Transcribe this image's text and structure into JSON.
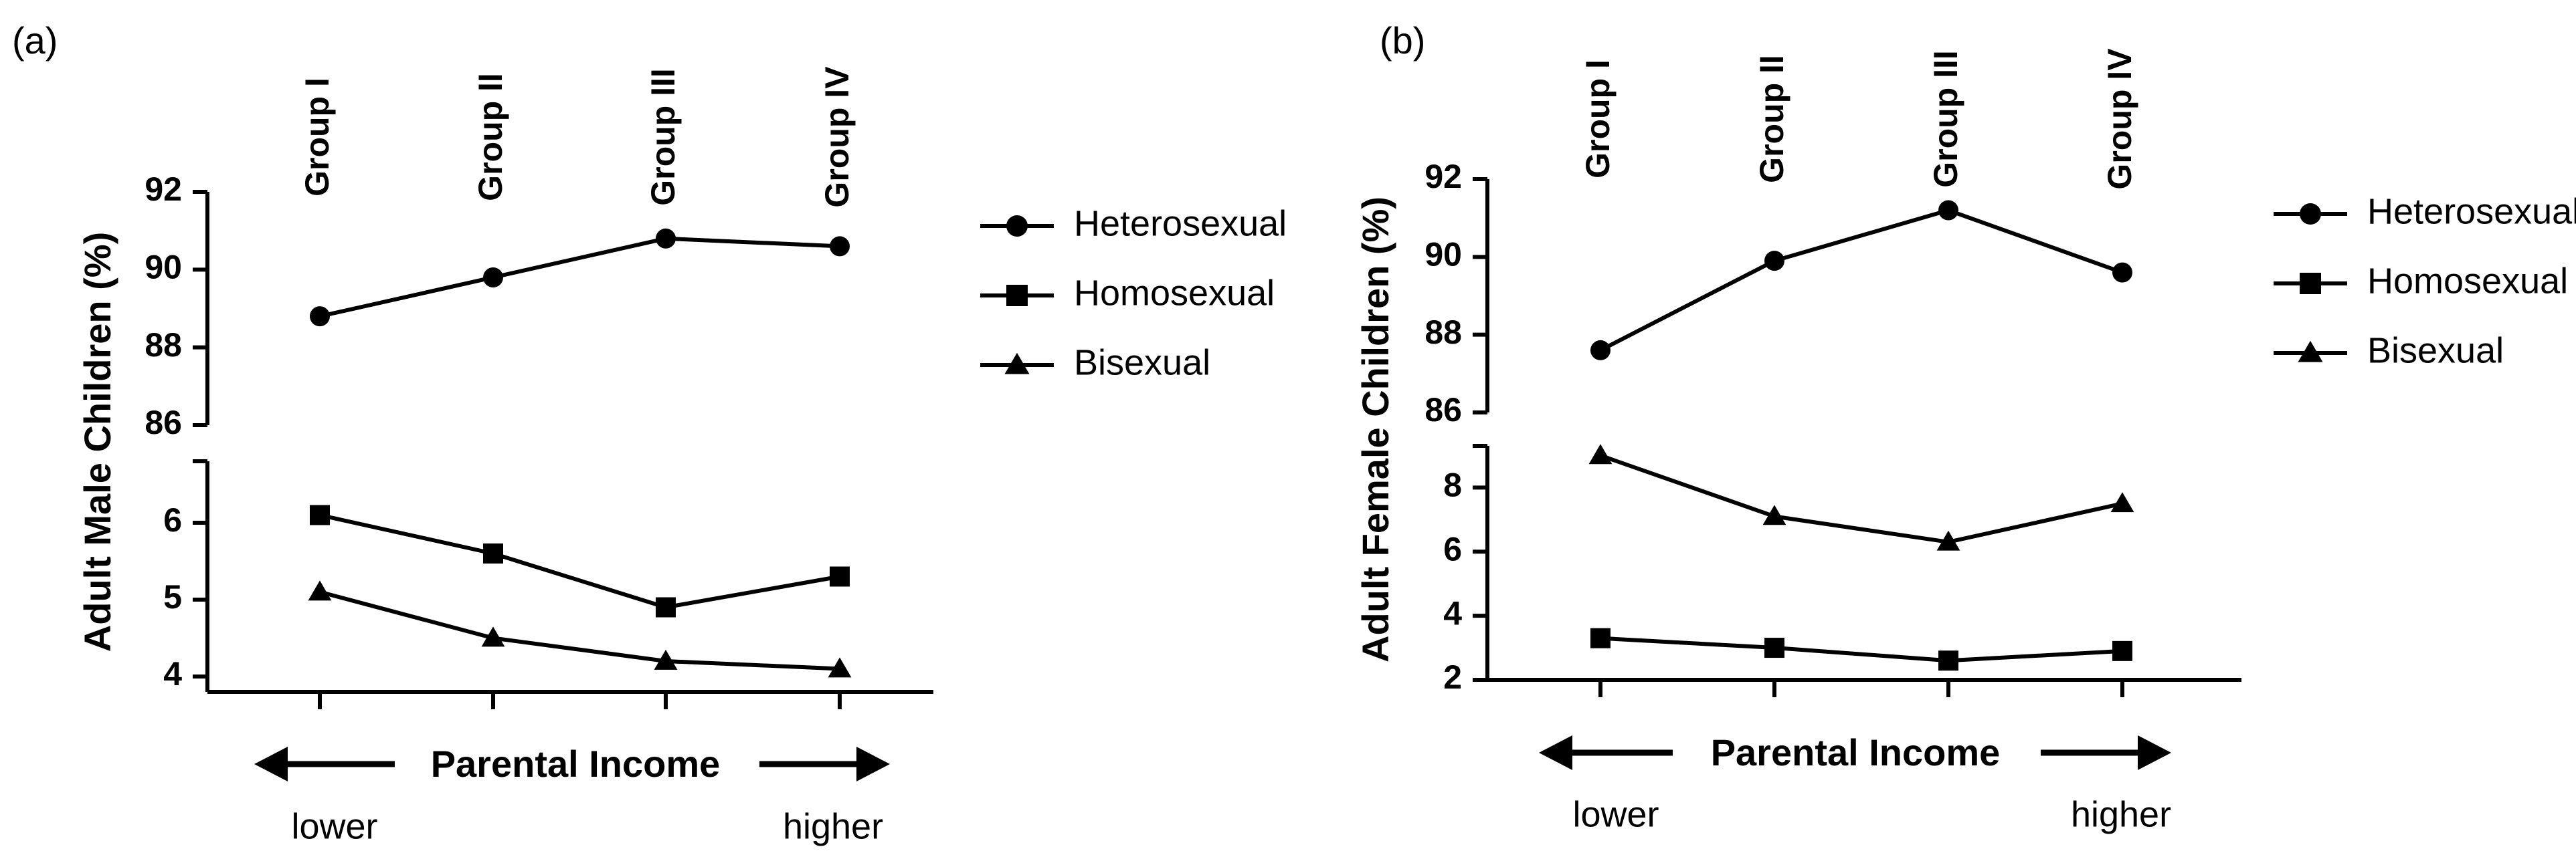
{
  "chart_data": [
    {
      "type": "line",
      "panel_label": "(a)",
      "ylabel": "Adult Male Children (%)",
      "categories": [
        "Group I",
        "Group II",
        "Group III",
        "Group IV"
      ],
      "xlabel": "Parental  Income",
      "x_low_label": "lower",
      "x_high_label": "higher",
      "y_axis_break": true,
      "y_upper_range": [
        86,
        92
      ],
      "y_upper_ticks": [
        86,
        88,
        90,
        92
      ],
      "y_lower_range": [
        3.8,
        6.8
      ],
      "y_lower_ticks": [
        4,
        5,
        6
      ],
      "legend_position": "right",
      "series": [
        {
          "name": "Heterosexual",
          "marker": "circle",
          "values": [
            88.8,
            89.8,
            90.8,
            90.6
          ]
        },
        {
          "name": "Homosexual",
          "marker": "square",
          "values": [
            6.1,
            5.6,
            4.9,
            5.3
          ]
        },
        {
          "name": "Bisexual",
          "marker": "triangle",
          "values": [
            5.1,
            4.5,
            4.2,
            4.1
          ]
        }
      ]
    },
    {
      "type": "line",
      "panel_label": "(b)",
      "ylabel": "Adult Female Children (%)",
      "categories": [
        "Group I",
        "Group II",
        "Group III",
        "Group IV"
      ],
      "xlabel": "Parental  Income",
      "x_low_label": "lower",
      "x_high_label": "higher",
      "y_axis_break": true,
      "y_upper_range": [
        86,
        92
      ],
      "y_upper_ticks": [
        86,
        88,
        90,
        92
      ],
      "y_lower_range": [
        2,
        9.3
      ],
      "y_lower_ticks": [
        2,
        4,
        6,
        8
      ],
      "legend_position": "right",
      "series": [
        {
          "name": "Heterosexual",
          "marker": "circle",
          "values": [
            87.6,
            89.9,
            91.2,
            89.6
          ]
        },
        {
          "name": "Homosexual",
          "marker": "square",
          "values": [
            3.3,
            3.0,
            2.6,
            2.9
          ]
        },
        {
          "name": "Bisexual",
          "marker": "triangle",
          "values": [
            9.0,
            7.1,
            6.3,
            7.5
          ]
        }
      ]
    }
  ]
}
